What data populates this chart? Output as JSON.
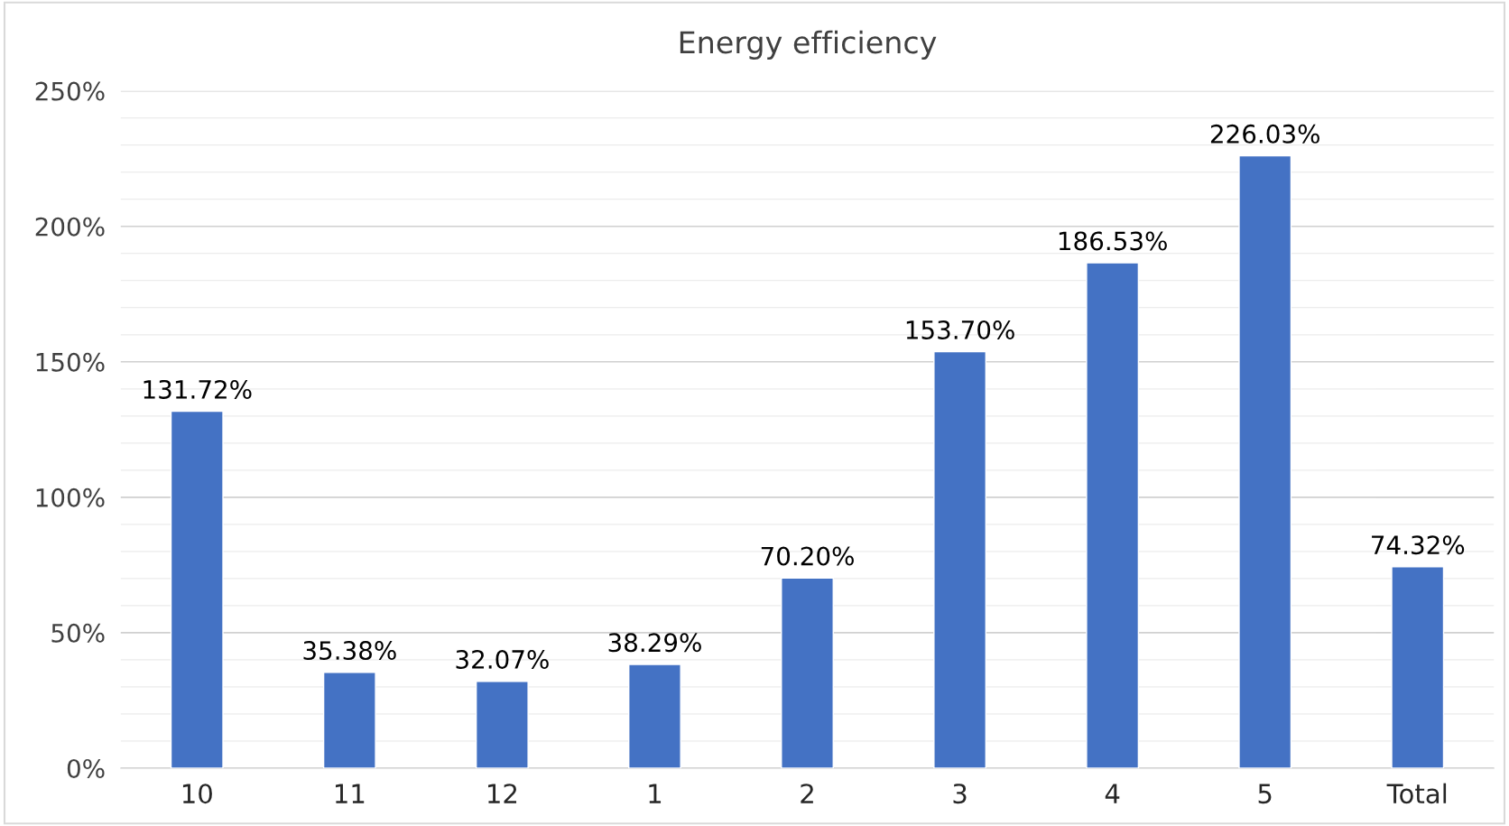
{
  "chart_data": {
    "type": "bar",
    "title": "Energy efficiency",
    "categories": [
      "10",
      "11",
      "12",
      "1",
      "2",
      "3",
      "4",
      "5",
      "Total"
    ],
    "values": [
      131.72,
      35.38,
      32.07,
      38.29,
      70.2,
      153.7,
      186.53,
      226.03,
      74.32
    ],
    "value_labels": [
      "131.72%",
      "35.38%",
      "32.07%",
      "38.29%",
      "70.20%",
      "153.70%",
      "186.53%",
      "226.03%",
      "74.32%"
    ],
    "color": "#4472c4",
    "ylim": [
      0,
      250
    ],
    "yticks": [
      {
        "value": 0,
        "label": "0%"
      },
      {
        "value": 10,
        "label": null
      },
      {
        "value": 20,
        "label": null
      },
      {
        "value": 30,
        "label": null
      },
      {
        "value": 40,
        "label": null
      },
      {
        "value": 50,
        "label": "50%"
      },
      {
        "value": 60,
        "label": null
      },
      {
        "value": 70,
        "label": null
      },
      {
        "value": 80,
        "label": null
      },
      {
        "value": 90,
        "label": null
      },
      {
        "value": 100,
        "label": "100%"
      },
      {
        "value": 110,
        "label": null
      },
      {
        "value": 120,
        "label": null
      },
      {
        "value": 130,
        "label": null
      },
      {
        "value": 140,
        "label": null
      },
      {
        "value": 150,
        "label": "150%"
      },
      {
        "value": 160,
        "label": null
      },
      {
        "value": 170,
        "label": null
      },
      {
        "value": 180,
        "label": null
      },
      {
        "value": 190,
        "label": null
      },
      {
        "value": 200,
        "label": "200%"
      },
      {
        "value": 210,
        "label": null
      },
      {
        "value": 220,
        "label": null
      },
      {
        "value": 230,
        "label": null
      },
      {
        "value": 240,
        "label": null
      },
      {
        "value": 250,
        "label": "250%"
      }
    ],
    "grid": "y"
  }
}
